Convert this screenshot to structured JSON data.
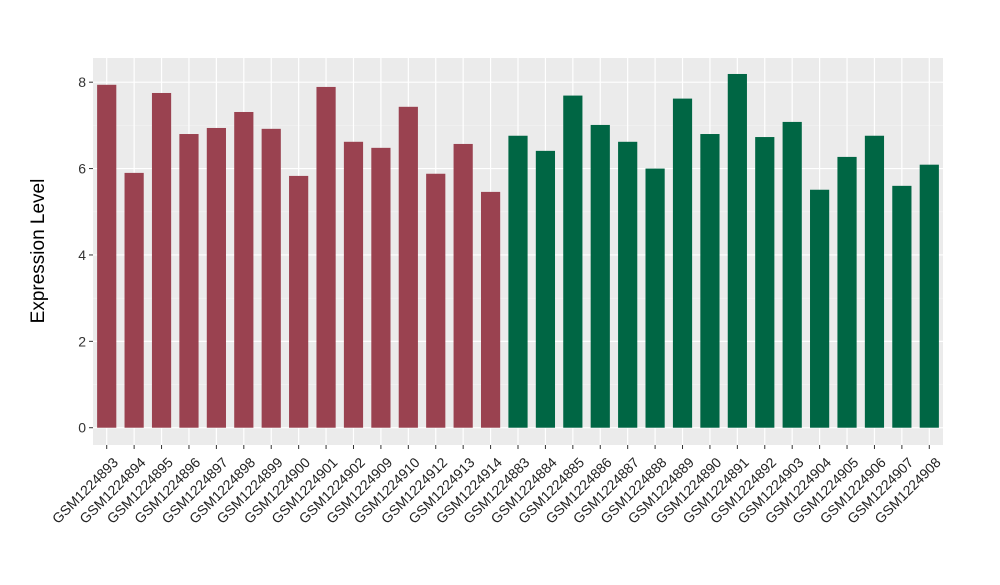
{
  "chart_data": {
    "type": "bar",
    "title": "",
    "xlabel": "",
    "ylabel": "Expression Level",
    "ylim": [
      -0.4,
      8.56
    ],
    "yticks": [
      0,
      2,
      4,
      6,
      8
    ],
    "grid": true,
    "legend": "none",
    "categories": [
      "GSM1224893",
      "GSM1224894",
      "GSM1224895",
      "GSM1224896",
      "GSM1224897",
      "GSM1224898",
      "GSM1224899",
      "GSM1224900",
      "GSM1224901",
      "GSM1224902",
      "GSM1224909",
      "GSM1224910",
      "GSM1224912",
      "GSM1224913",
      "GSM1224914",
      "GSM1224883",
      "GSM1224884",
      "GSM1224885",
      "GSM1224886",
      "GSM1224887",
      "GSM1224888",
      "GSM1224889",
      "GSM1224890",
      "GSM1224891",
      "GSM1224892",
      "GSM1224903",
      "GSM1224904",
      "GSM1224905",
      "GSM1224906",
      "GSM1224907",
      "GSM1224908"
    ],
    "values": [
      7.94,
      5.9,
      7.75,
      6.8,
      6.94,
      7.31,
      6.92,
      5.83,
      7.89,
      6.62,
      6.48,
      7.43,
      5.88,
      6.57,
      5.46,
      6.76,
      6.41,
      7.69,
      7.01,
      6.62,
      6.0,
      7.62,
      6.8,
      8.19,
      6.73,
      7.08,
      5.51,
      6.27,
      6.76,
      5.6,
      6.09
    ],
    "groups": [
      0,
      0,
      0,
      0,
      0,
      0,
      0,
      0,
      0,
      0,
      0,
      0,
      0,
      0,
      0,
      1,
      1,
      1,
      1,
      1,
      1,
      1,
      1,
      1,
      1,
      1,
      1,
      1,
      1,
      1,
      1
    ],
    "group_colors": [
      "#9a4250",
      "#006644"
    ]
  }
}
